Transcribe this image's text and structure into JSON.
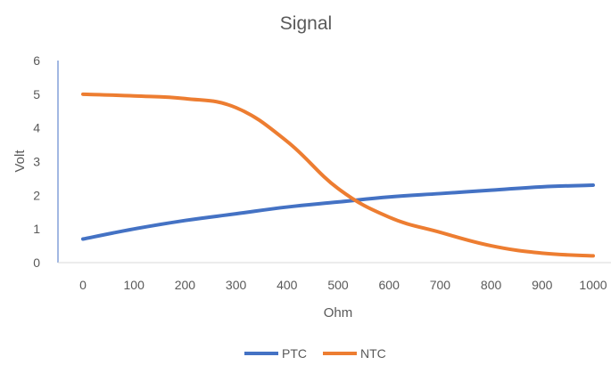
{
  "chart_data": {
    "type": "line",
    "title": "Signal",
    "xlabel": "Ohm",
    "ylabel": "Volt",
    "x": [
      0,
      100,
      200,
      300,
      400,
      500,
      600,
      700,
      800,
      900,
      1000
    ],
    "xlim": [
      0,
      1000
    ],
    "ylim": [
      0,
      6
    ],
    "yticks": [
      0,
      1,
      2,
      3,
      4,
      5,
      6
    ],
    "grid": false,
    "legend": "bottom",
    "smooth": true,
    "series": [
      {
        "name": "PTC",
        "color": "#4472C4",
        "values": [
          0.7,
          1.0,
          1.25,
          1.45,
          1.65,
          1.8,
          1.95,
          2.05,
          2.15,
          2.25,
          2.3
        ]
      },
      {
        "name": "NTC",
        "color": "#ED7D31",
        "values": [
          5.0,
          4.95,
          4.87,
          4.6,
          3.6,
          2.2,
          1.35,
          0.9,
          0.5,
          0.28,
          0.2
        ]
      }
    ]
  }
}
